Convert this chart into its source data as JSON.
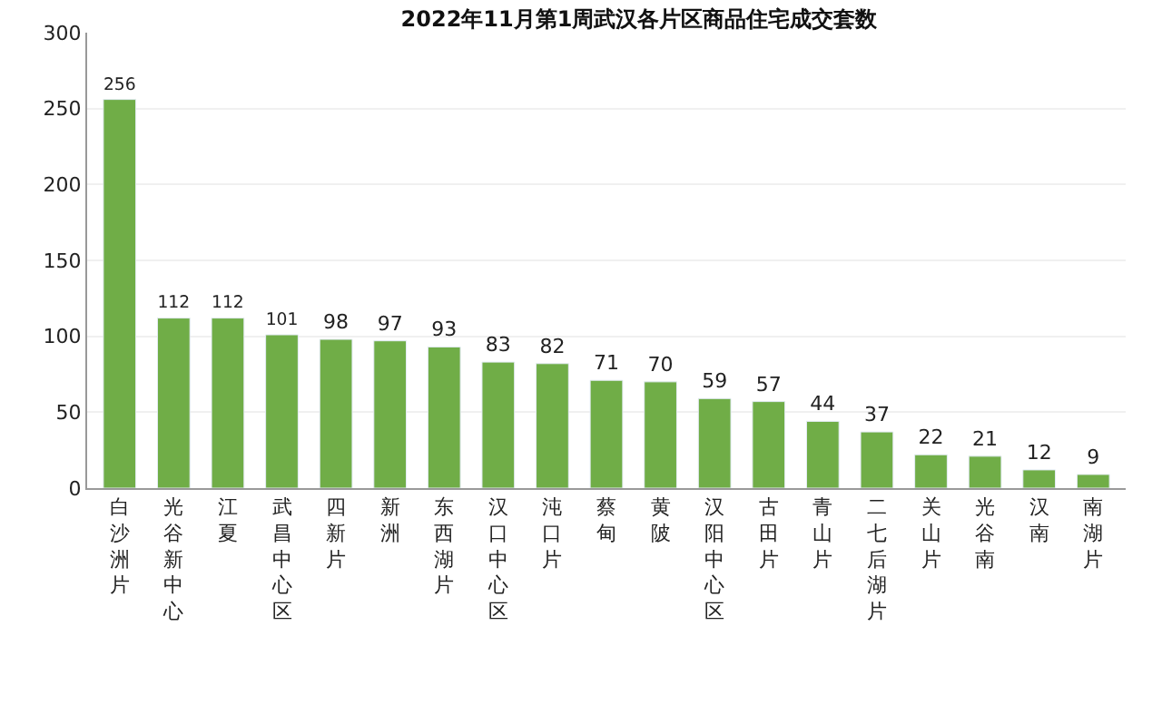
{
  "chart_data": {
    "type": "bar",
    "title": "2022年11月第1周武汉各片区商品住宅成交套数",
    "categories": [
      "白沙洲片",
      "光谷新中心",
      "江夏",
      "武昌中心区",
      "四新片",
      "新洲",
      "东西湖片",
      "汉口中心区",
      "沌口片",
      "蔡甸",
      "黄陂",
      "汉阳中心区",
      "古田片",
      "青山片",
      "二七后湖片",
      "关山片",
      "光谷南",
      "汉南",
      "南湖片"
    ],
    "values": [
      256,
      112,
      112,
      101,
      98,
      97,
      93,
      83,
      82,
      71,
      70,
      59,
      57,
      44,
      37,
      22,
      21,
      12,
      9
    ],
    "color": "#70ad47",
    "ylim": [
      0,
      300
    ],
    "yticks": [
      0,
      50,
      100,
      150,
      200,
      250,
      300
    ],
    "grid": "y",
    "data_labels": true
  }
}
